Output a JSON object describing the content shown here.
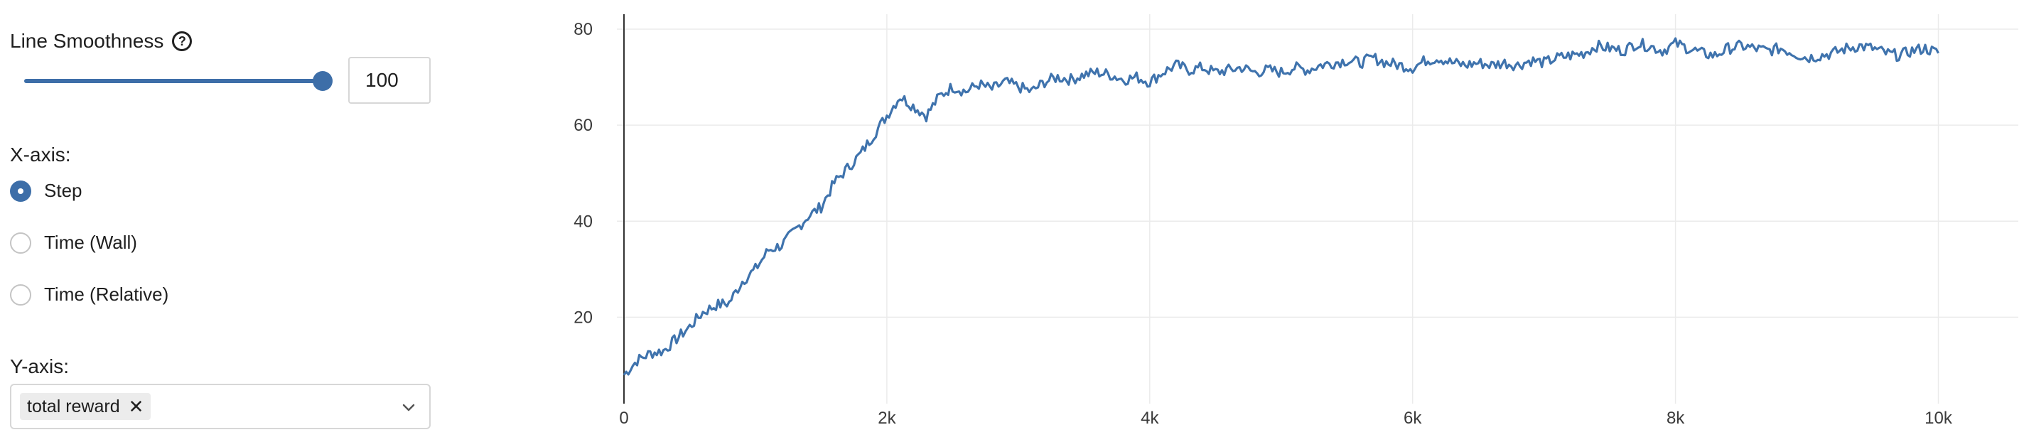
{
  "controls": {
    "smoothness": {
      "label": "Line Smoothness",
      "help_icon": "?",
      "value": "100",
      "slider_fraction": 1.0
    },
    "x_axis": {
      "label": "X-axis:",
      "options": [
        "Step",
        "Time (Wall)",
        "Time (Relative)"
      ],
      "selected": "Step"
    },
    "y_axis": {
      "label": "Y-axis:",
      "selected_chip": "total reward",
      "chip_remove": "✕"
    }
  },
  "colors": {
    "accent": "#3d6ea8",
    "line": "#3f73ad",
    "grid": "#ebebeb"
  },
  "chart_data": {
    "type": "line",
    "title": "",
    "xlabel": "",
    "ylabel": "",
    "xlim": [
      0,
      10500
    ],
    "ylim": [
      2,
      84
    ],
    "x_ticks": [
      0,
      2000,
      4000,
      6000,
      8000,
      10000
    ],
    "x_tick_labels": [
      "0",
      "2k",
      "4k",
      "6k",
      "8k",
      "10k"
    ],
    "y_ticks": [
      20,
      40,
      60,
      80
    ],
    "y_tick_labels": [
      "20",
      "40",
      "60",
      "80"
    ],
    "grid": true,
    "legend": "none",
    "series": [
      {
        "x": [
          0,
          100,
          200,
          300,
          400,
          500,
          600,
          700,
          800,
          900,
          1000,
          1100,
          1200,
          1300,
          1400,
          1500,
          1600,
          1700,
          1800,
          1900,
          2000,
          2100,
          2200,
          2300,
          2400,
          2500,
          2600,
          2700,
          2800,
          2900,
          3000,
          3100,
          3200,
          3300,
          3400,
          3500,
          3600,
          3700,
          3800,
          3900,
          4000,
          4100,
          4200,
          4300,
          4400,
          4500,
          4600,
          4700,
          4800,
          4900,
          5000,
          5100,
          5200,
          5300,
          5400,
          5500,
          5600,
          5700,
          5800,
          5900,
          6000,
          6100,
          6200,
          6300,
          6400,
          6500,
          6600,
          6700,
          6800,
          6900,
          7000,
          7100,
          7200,
          7300,
          7400,
          7500,
          7600,
          7700,
          7800,
          7900,
          8000,
          8100,
          8200,
          8300,
          8400,
          8500,
          8600,
          8700,
          8800,
          8900,
          9000,
          9100,
          9200,
          9300,
          9400,
          9500,
          9600,
          9700,
          9800,
          9900,
          10000
        ],
        "y": [
          8,
          11,
          12.5,
          13,
          15.5,
          18,
          21,
          22.5,
          23,
          27.5,
          30,
          34,
          35,
          38,
          41,
          43,
          48,
          51,
          54,
          58,
          62,
          66,
          64,
          62,
          66,
          68,
          67,
          68.5,
          67.5,
          69,
          68,
          67,
          69,
          70,
          69.5,
          70.5,
          71,
          70.5,
          69.5,
          70,
          69,
          71,
          72.5,
          71.5,
          72,
          71,
          71.5,
          72,
          71,
          71.5,
          71,
          72,
          71.5,
          72.5,
          73,
          73.5,
          73,
          74,
          73,
          72.5,
          72,
          73.5,
          74,
          73,
          72.5,
          73,
          72.5,
          73,
          72.5,
          73.5,
          73,
          74,
          74.5,
          75,
          76.5,
          76,
          75.5,
          77,
          76.5,
          75.5,
          77,
          76,
          75,
          74.5,
          76,
          76.5,
          76,
          75.5,
          76,
          75,
          74,
          74.5,
          75,
          76,
          76.5,
          76,
          75,
          74.5,
          75.5,
          76,
          75
        ]
      }
    ]
  }
}
